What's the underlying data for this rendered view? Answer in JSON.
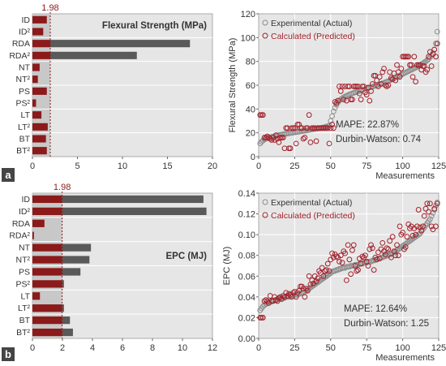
{
  "colors": {
    "bar_dark": "#8b1a1a",
    "bar_gray": "#5a5a5a",
    "panel_bg": "#e6e6e6",
    "threshold_fill": "#c8c8c8",
    "threshold_line": "#8b1a1a",
    "experimental_marker": "#8c8c8c",
    "predicted_marker": "#a3202a",
    "tag_bg": "#444444",
    "grid": "#ffffff"
  },
  "chart_data": [
    {
      "id": "a-bar",
      "type": "bar",
      "orientation": "horizontal",
      "panel_tag": "a",
      "title": "Flexural Strength (MPa)",
      "threshold_label": "1.98",
      "threshold": 1.98,
      "categories": [
        "ID",
        "ID²",
        "RDA",
        "RDA²",
        "NT",
        "NT²",
        "PS",
        "PS²",
        "LT",
        "LT²",
        "BT",
        "BT²"
      ],
      "values": [
        1.6,
        1.2,
        17.5,
        11.6,
        0.8,
        0.6,
        1.6,
        0.4,
        1.0,
        1.7,
        1.5,
        1.6
      ],
      "xlim": [
        0,
        20
      ],
      "xticks": [
        0,
        5,
        10,
        15,
        20
      ]
    },
    {
      "id": "a-scatter",
      "type": "scatter",
      "xlabel": "Measurements",
      "ylabel": "Flexural Strength (MPa)",
      "xlim": [
        0,
        125
      ],
      "ylim": [
        0,
        120
      ],
      "xticks": [
        0,
        25,
        50,
        75,
        100,
        125
      ],
      "yticks": [
        0,
        20,
        40,
        60,
        80,
        100,
        120
      ],
      "legend": "top-left",
      "series_names": [
        "Experimental (Actual)",
        "Calculated (Predicted)"
      ],
      "annotation": [
        "MAPE: 22.87%",
        "Durbin-Watson: 0.74"
      ],
      "x": [
        1,
        2,
        3,
        4,
        5,
        6,
        7,
        8,
        9,
        10,
        11,
        12,
        13,
        14,
        15,
        16,
        17,
        18,
        19,
        20,
        21,
        22,
        23,
        24,
        25,
        26,
        27,
        28,
        29,
        30,
        31,
        32,
        33,
        34,
        35,
        36,
        37,
        38,
        39,
        40,
        41,
        42,
        43,
        44,
        45,
        46,
        47,
        48,
        49,
        50,
        51,
        52,
        53,
        54,
        55,
        56,
        57,
        58,
        59,
        60,
        61,
        62,
        63,
        64,
        65,
        66,
        67,
        68,
        69,
        70,
        71,
        72,
        73,
        74,
        75,
        76,
        77,
        78,
        79,
        80,
        81,
        82,
        83,
        84,
        85,
        86,
        87,
        88,
        89,
        90,
        91,
        92,
        93,
        94,
        95,
        96,
        97,
        98,
        99,
        100,
        101,
        102,
        103,
        104,
        105,
        106,
        107,
        108,
        109,
        110,
        111,
        112,
        113,
        114,
        115,
        116,
        117,
        118,
        119,
        120,
        121,
        122,
        123,
        124
      ],
      "actual": [
        11.0,
        12.5,
        13.5,
        14.3,
        14.9,
        15.4,
        15.8,
        16.2,
        16.6,
        16.9,
        17.2,
        17.5,
        17.8,
        18.1,
        18.3,
        18.6,
        18.8,
        19.0,
        19.2,
        19.4,
        19.6,
        19.8,
        20.0,
        20.2,
        20.4,
        20.6,
        20.8,
        21.0,
        21.2,
        21.4,
        21.6,
        21.8,
        22.0,
        22.2,
        22.4,
        22.6,
        22.8,
        23.0,
        23.2,
        23.4,
        23.6,
        23.8,
        24.0,
        24.3,
        24.6,
        24.9,
        25.2,
        25.6,
        26.0,
        30.0,
        34.0,
        38.0,
        41.0,
        43.5,
        45.5,
        47.0,
        48.0,
        49.0,
        49.8,
        50.5,
        51.1,
        51.7,
        52.2,
        52.7,
        53.2,
        53.6,
        54.0,
        54.4,
        54.8,
        55.2,
        55.6,
        56.0,
        56.4,
        56.8,
        57.2,
        57.6,
        58.0,
        58.4,
        58.8,
        59.2,
        59.6,
        60.0,
        60.4,
        60.8,
        61.2,
        61.6,
        62.0,
        62.5,
        63.0,
        63.5,
        64.0,
        64.6,
        65.2,
        65.8,
        66.4,
        67.0,
        67.6,
        68.2,
        68.8,
        69.4,
        70.0,
        70.6,
        71.2,
        71.8,
        72.4,
        73.0,
        73.6,
        74.2,
        74.8,
        75.4,
        76.0,
        76.8,
        77.6,
        78.4,
        79.2,
        80.0,
        81.0,
        82.0,
        83.5,
        85.0,
        87.0,
        90.0,
        95.0,
        105.0
      ],
      "predicted": [
        35,
        35,
        35,
        16,
        16,
        17,
        16,
        15,
        14,
        16,
        14,
        18,
        15,
        12,
        16,
        16,
        16,
        7,
        24,
        24,
        7,
        7,
        24,
        24,
        24,
        11,
        27,
        27,
        24,
        24,
        15,
        16,
        24,
        24,
        35,
        12,
        24,
        24,
        24,
        13,
        24,
        24,
        24,
        24,
        24,
        24,
        24,
        24,
        11,
        24,
        27,
        24,
        46,
        45,
        47,
        59,
        55,
        59,
        48,
        59,
        47,
        59,
        59,
        48,
        48,
        59,
        59,
        59,
        59,
        53,
        48,
        59,
        59,
        54,
        52,
        58,
        47,
        55,
        61,
        68,
        68,
        64,
        59,
        67,
        61,
        71,
        74,
        60,
        59,
        60,
        71,
        66,
        65,
        70,
        64,
        77,
        71,
        67,
        74,
        84,
        84,
        84,
        84,
        84,
        77,
        77,
        67,
        84,
        63,
        77,
        77,
        77,
        73,
        76,
        76,
        71,
        73,
        84,
        88,
        76,
        86,
        90,
        84,
        95
      ]
    },
    {
      "id": "b-bar",
      "type": "bar",
      "orientation": "horizontal",
      "panel_tag": "b",
      "title": "EPC (MJ)",
      "threshold_label": "1.98",
      "threshold": 1.98,
      "categories": [
        "ID",
        "ID²",
        "RDA",
        "RDA²",
        "NT",
        "NT²",
        "PS",
        "PS²",
        "LT",
        "LT²",
        "BT",
        "BT²"
      ],
      "values": [
        11.4,
        11.6,
        0.8,
        0.1,
        3.9,
        3.8,
        3.2,
        2.1,
        0.5,
        2.1,
        2.5,
        2.7
      ],
      "xlim": [
        0,
        12
      ],
      "xticks": [
        0,
        2,
        4,
        6,
        8,
        10,
        12
      ]
    },
    {
      "id": "b-scatter",
      "type": "scatter",
      "xlabel": "Measurements",
      "ylabel": "EPC (MJ)",
      "xlim": [
        0,
        125
      ],
      "ylim": [
        0,
        0.14
      ],
      "xticks": [
        0,
        25,
        50,
        75,
        100,
        125
      ],
      "yticks": [
        0,
        0.02,
        0.04,
        0.06,
        0.08,
        0.1,
        0.12,
        0.14
      ],
      "legend": "top-left",
      "series_names": [
        "Experimental (Actual)",
        "Calculated (Predicted)"
      ],
      "annotation": [
        "MAPE: 12.64%",
        "Durbin-Watson: 1.25"
      ],
      "x": [
        1,
        2,
        3,
        4,
        5,
        6,
        7,
        8,
        9,
        10,
        11,
        12,
        13,
        14,
        15,
        16,
        17,
        18,
        19,
        20,
        21,
        22,
        23,
        24,
        25,
        26,
        27,
        28,
        29,
        30,
        31,
        32,
        33,
        34,
        35,
        36,
        37,
        38,
        39,
        40,
        41,
        42,
        43,
        44,
        45,
        46,
        47,
        48,
        49,
        50,
        51,
        52,
        53,
        54,
        55,
        56,
        57,
        58,
        59,
        60,
        61,
        62,
        63,
        64,
        65,
        66,
        67,
        68,
        69,
        70,
        71,
        72,
        73,
        74,
        75,
        76,
        77,
        78,
        79,
        80,
        81,
        82,
        83,
        84,
        85,
        86,
        87,
        88,
        89,
        90,
        91,
        92,
        93,
        94,
        95,
        96,
        97,
        98,
        99,
        100,
        101,
        102,
        103,
        104,
        105,
        106,
        107,
        108,
        109,
        110,
        111,
        112,
        113,
        114,
        115,
        116,
        117,
        118,
        119,
        120,
        121,
        122,
        123,
        124
      ],
      "actual": [
        0.027,
        0.029,
        0.031,
        0.032,
        0.033,
        0.034,
        0.035,
        0.035,
        0.036,
        0.036,
        0.037,
        0.037,
        0.038,
        0.038,
        0.038,
        0.039,
        0.039,
        0.039,
        0.04,
        0.04,
        0.04,
        0.041,
        0.041,
        0.041,
        0.042,
        0.042,
        0.042,
        0.043,
        0.043,
        0.044,
        0.044,
        0.045,
        0.046,
        0.047,
        0.048,
        0.049,
        0.05,
        0.051,
        0.052,
        0.053,
        0.054,
        0.055,
        0.056,
        0.057,
        0.058,
        0.059,
        0.06,
        0.061,
        0.062,
        0.063,
        0.064,
        0.065,
        0.065,
        0.066,
        0.066,
        0.067,
        0.067,
        0.068,
        0.068,
        0.068,
        0.069,
        0.069,
        0.069,
        0.07,
        0.07,
        0.07,
        0.071,
        0.071,
        0.071,
        0.072,
        0.072,
        0.072,
        0.073,
        0.073,
        0.073,
        0.074,
        0.074,
        0.074,
        0.075,
        0.075,
        0.076,
        0.076,
        0.077,
        0.077,
        0.078,
        0.078,
        0.079,
        0.079,
        0.08,
        0.08,
        0.081,
        0.081,
        0.082,
        0.083,
        0.084,
        0.085,
        0.086,
        0.087,
        0.088,
        0.089,
        0.09,
        0.091,
        0.092,
        0.093,
        0.094,
        0.095,
        0.096,
        0.097,
        0.098,
        0.099,
        0.1,
        0.101,
        0.103,
        0.105,
        0.107,
        0.109,
        0.111,
        0.113,
        0.115,
        0.118,
        0.121,
        0.124,
        0.128,
        0.131
      ],
      "predicted": [
        0.02,
        0.02,
        0.02,
        0.036,
        0.037,
        0.036,
        0.034,
        0.041,
        0.036,
        0.036,
        0.04,
        0.037,
        0.036,
        0.039,
        0.04,
        0.038,
        0.041,
        0.04,
        0.044,
        0.041,
        0.043,
        0.042,
        0.04,
        0.044,
        0.045,
        0.04,
        0.044,
        0.046,
        0.05,
        0.05,
        0.048,
        0.04,
        0.048,
        0.046,
        0.06,
        0.052,
        0.056,
        0.053,
        0.06,
        0.055,
        0.058,
        0.065,
        0.063,
        0.068,
        0.06,
        0.065,
        0.066,
        0.072,
        0.065,
        0.076,
        0.082,
        0.078,
        0.081,
        0.079,
        0.078,
        0.074,
        0.08,
        0.073,
        0.084,
        0.082,
        0.056,
        0.09,
        0.076,
        0.062,
        0.085,
        0.09,
        0.07,
        0.065,
        0.066,
        0.077,
        0.072,
        0.079,
        0.078,
        0.08,
        0.074,
        0.07,
        0.086,
        0.09,
        0.087,
        0.066,
        0.078,
        0.076,
        0.083,
        0.077,
        0.086,
        0.092,
        0.084,
        0.081,
        0.087,
        0.086,
        0.094,
        0.078,
        0.098,
        0.084,
        0.08,
        0.09,
        0.08,
        0.108,
        0.1,
        0.102,
        0.086,
        0.088,
        0.098,
        0.11,
        0.106,
        0.108,
        0.099,
        0.106,
        0.1,
        0.108,
        0.124,
        0.107,
        0.104,
        0.108,
        0.118,
        0.125,
        0.13,
        0.122,
        0.13,
        0.108,
        0.105,
        0.125,
        0.108,
        0.13
      ]
    }
  ]
}
